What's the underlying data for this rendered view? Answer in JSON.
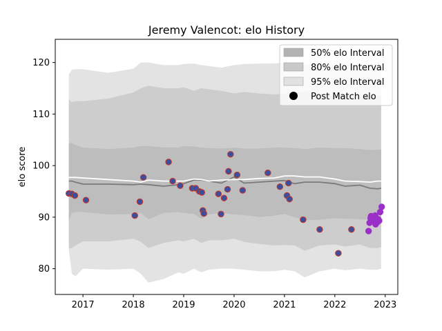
{
  "chart_data": {
    "type": "area",
    "title": "Jeremy Valencot: elo History",
    "xlabel": "",
    "ylabel": "elo score",
    "xlim": [
      2016.45,
      2023.25
    ],
    "ylim": [
      75.0,
      124.5
    ],
    "x_ticks": [
      2017,
      2018,
      2019,
      2020,
      2021,
      2022,
      2023
    ],
    "x_tick_labels": [
      "2017",
      "2018",
      "2019",
      "2020",
      "2021",
      "2022",
      "2023"
    ],
    "y_ticks": [
      80,
      90,
      100,
      110,
      120
    ],
    "y_tick_labels": [
      "80",
      "90",
      "100",
      "110",
      "120"
    ],
    "grid": false,
    "legend_position": "top-right",
    "colors": {
      "band95": "#e3e3e3",
      "band80": "#cdcdcd",
      "band50": "#bdbdbd",
      "median_line": "#7a7a7a",
      "mean_line": "#ffffff",
      "point_fill": "#3b4fa0",
      "point_edge": "#c0392b",
      "recent_point": "#9b30c8"
    },
    "legend": [
      {
        "label": "50% elo Interval",
        "kind": "band",
        "color": "#b3b3b3"
      },
      {
        "label": "80% elo Interval",
        "kind": "band",
        "color": "#c9c9c9"
      },
      {
        "label": "95% elo Interval",
        "kind": "band",
        "color": "#e1e1e1"
      },
      {
        "label": "Post Match elo",
        "kind": "marker",
        "color": "#000000"
      }
    ],
    "bands": {
      "x": [
        2016.72,
        2016.78,
        2016.85,
        2017.0,
        2017.5,
        2018.0,
        2018.15,
        2018.3,
        2018.6,
        2018.9,
        2019.0,
        2019.2,
        2019.35,
        2019.5,
        2019.75,
        2020.0,
        2020.2,
        2020.5,
        2020.8,
        2021.0,
        2021.2,
        2021.4,
        2021.7,
        2022.0,
        2022.2,
        2022.5,
        2022.7,
        2022.85,
        2022.92
      ],
      "p95_low": [
        83.5,
        79.0,
        78.5,
        80.0,
        79.8,
        80.0,
        79.0,
        77.3,
        78.0,
        79.3,
        79.0,
        80.0,
        79.3,
        79.8,
        80.0,
        80.0,
        79.8,
        79.5,
        79.5,
        79.8,
        79.5,
        78.3,
        79.5,
        80.0,
        79.7,
        80.0,
        79.8,
        79.8,
        80.0
      ],
      "p95_high": [
        117.7,
        118.6,
        118.7,
        118.7,
        118.0,
        118.8,
        120.0,
        120.0,
        119.5,
        119.5,
        119.7,
        119.8,
        119.5,
        119.3,
        119.0,
        119.5,
        119.7,
        119.8,
        119.8,
        120.0,
        119.8,
        119.6,
        119.8,
        119.5,
        119.6,
        119.5,
        119.6,
        119.7,
        119.7
      ],
      "p80_low": [
        84.0,
        84.0,
        84.5,
        85.3,
        85.3,
        85.8,
        85.2,
        84.0,
        85.0,
        85.5,
        85.3,
        85.8,
        85.0,
        85.5,
        85.5,
        85.8,
        85.2,
        84.8,
        84.5,
        84.6,
        84.5,
        83.5,
        84.5,
        84.7,
        84.3,
        84.7,
        84.0,
        84.0,
        84.2
      ],
      "p80_high": [
        112.8,
        112.3,
        112.5,
        112.5,
        113.0,
        114.2,
        115.0,
        115.5,
        115.0,
        115.0,
        115.2,
        114.5,
        115.0,
        114.8,
        114.5,
        114.0,
        114.3,
        114.0,
        113.8,
        114.0,
        114.0,
        114.5,
        113.5,
        113.5,
        113.8,
        113.5,
        113.5,
        113.6,
        113.7
      ],
      "p50_low": [
        89.3,
        90.8,
        91.0,
        91.0,
        90.5,
        90.6,
        90.8,
        89.6,
        90.8,
        91.0,
        90.8,
        90.6,
        89.7,
        90.5,
        90.8,
        90.5,
        90.4,
        90.0,
        90.3,
        90.6,
        90.0,
        89.4,
        89.5,
        89.8,
        89.7,
        89.6,
        89.5,
        89.6,
        89.7
      ],
      "p50_high": [
        104.3,
        104.4,
        104.0,
        103.5,
        103.2,
        103.5,
        103.8,
        103.8,
        103.5,
        103.5,
        103.8,
        103.7,
        103.5,
        103.4,
        103.3,
        103.5,
        103.3,
        103.3,
        103.5,
        103.5,
        103.4,
        103.2,
        103.5,
        103.4,
        103.4,
        103.2,
        103.0,
        103.1,
        103.1
      ],
      "median": [
        97.0,
        97.0,
        96.8,
        96.4,
        96.4,
        96.3,
        96.4,
        96.3,
        96.0,
        96.3,
        96.5,
        97.2,
        97.2,
        97.0,
        96.6,
        97.8,
        96.6,
        96.8,
        97.0,
        97.1,
        96.5,
        96.8,
        96.8,
        96.5,
        96.0,
        96.2,
        95.6,
        95.5,
        95.6
      ],
      "mean": [
        97.7,
        97.7,
        97.7,
        97.6,
        97.3,
        97.0,
        96.8,
        97.2,
        97.0,
        97.0,
        97.0,
        97.4,
        97.3,
        97.0,
        97.2,
        97.3,
        97.3,
        97.5,
        97.6,
        98.0,
        98.0,
        97.8,
        97.8,
        97.4,
        97.0,
        96.9,
        96.8,
        97.0,
        97.0
      ]
    },
    "post_match_elo": [
      {
        "x": 2016.72,
        "y": 94.6
      },
      {
        "x": 2016.78,
        "y": 94.5
      },
      {
        "x": 2016.84,
        "y": 94.2
      },
      {
        "x": 2017.06,
        "y": 93.3
      },
      {
        "x": 2018.03,
        "y": 90.3
      },
      {
        "x": 2018.13,
        "y": 93.0
      },
      {
        "x": 2018.2,
        "y": 97.7
      },
      {
        "x": 2018.7,
        "y": 100.7
      },
      {
        "x": 2018.78,
        "y": 97.0
      },
      {
        "x": 2018.93,
        "y": 96.1
      },
      {
        "x": 2019.17,
        "y": 95.6
      },
      {
        "x": 2019.24,
        "y": 95.6
      },
      {
        "x": 2019.31,
        "y": 95.0
      },
      {
        "x": 2019.36,
        "y": 94.8
      },
      {
        "x": 2019.38,
        "y": 91.3
      },
      {
        "x": 2019.4,
        "y": 90.7
      },
      {
        "x": 2019.69,
        "y": 94.5
      },
      {
        "x": 2019.74,
        "y": 90.6
      },
      {
        "x": 2019.8,
        "y": 93.7
      },
      {
        "x": 2019.87,
        "y": 95.4
      },
      {
        "x": 2019.89,
        "y": 98.9
      },
      {
        "x": 2019.93,
        "y": 102.2
      },
      {
        "x": 2020.06,
        "y": 98.2
      },
      {
        "x": 2020.17,
        "y": 95.2
      },
      {
        "x": 2020.67,
        "y": 98.6
      },
      {
        "x": 2020.91,
        "y": 95.9
      },
      {
        "x": 2021.05,
        "y": 94.2
      },
      {
        "x": 2021.08,
        "y": 96.6
      },
      {
        "x": 2021.1,
        "y": 93.5
      },
      {
        "x": 2021.37,
        "y": 89.5
      },
      {
        "x": 2021.7,
        "y": 87.6
      },
      {
        "x": 2022.07,
        "y": 83.0
      },
      {
        "x": 2022.33,
        "y": 87.6
      }
    ],
    "recent_post_match_elo": [
      {
        "x": 2022.67,
        "y": 87.3
      },
      {
        "x": 2022.69,
        "y": 88.9
      },
      {
        "x": 2022.71,
        "y": 89.8
      },
      {
        "x": 2022.72,
        "y": 90.2
      },
      {
        "x": 2022.75,
        "y": 89.5
      },
      {
        "x": 2022.78,
        "y": 89.2
      },
      {
        "x": 2022.8,
        "y": 90.3
      },
      {
        "x": 2022.81,
        "y": 88.6
      },
      {
        "x": 2022.84,
        "y": 89.0
      },
      {
        "x": 2022.86,
        "y": 89.6
      },
      {
        "x": 2022.88,
        "y": 89.3
      },
      {
        "x": 2022.9,
        "y": 91.0
      },
      {
        "x": 2022.93,
        "y": 92.0
      }
    ]
  }
}
